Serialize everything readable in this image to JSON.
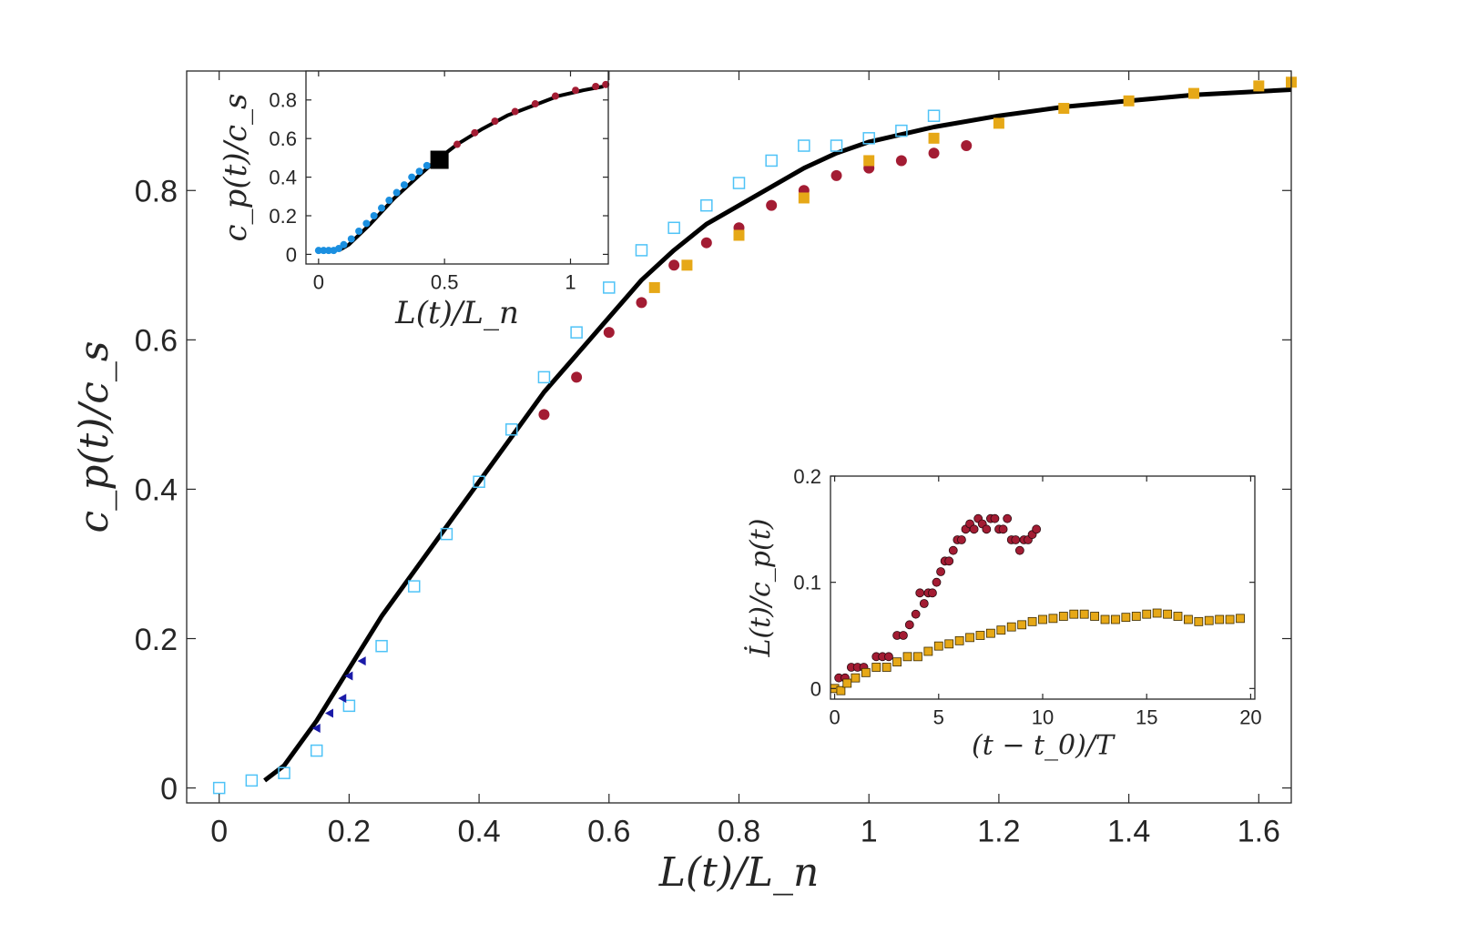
{
  "chart_data": [
    {
      "id": "main",
      "type": "scatter",
      "xlabel": "L(t)/L_n",
      "ylabel": "c_p(t)/c_s",
      "xlim": [
        -0.05,
        1.65
      ],
      "ylim": [
        -0.02,
        0.96
      ],
      "xticks": [
        0,
        0.2,
        0.4,
        0.6,
        0.8,
        1,
        1.2,
        1.4,
        1.6
      ],
      "xtick_labels": [
        "0",
        "0.2",
        "0.4",
        "0.6",
        "0.8",
        "1",
        "1.2",
        "1.4",
        "1.6"
      ],
      "yticks": [
        0,
        0.2,
        0.4,
        0.6,
        0.8
      ],
      "ytick_labels": [
        "0",
        "0.2",
        "0.4",
        "0.6",
        "0.8"
      ],
      "grid": false,
      "series": [
        {
          "name": "model",
          "kind": "line",
          "color": "#000000",
          "x": [
            0.07,
            0.1,
            0.15,
            0.2,
            0.25,
            0.3,
            0.35,
            0.4,
            0.45,
            0.5,
            0.55,
            0.6,
            0.65,
            0.7,
            0.75,
            0.8,
            0.85,
            0.9,
            0.95,
            1.0,
            1.1,
            1.2,
            1.3,
            1.4,
            1.5,
            1.65
          ],
          "y": [
            0.01,
            0.03,
            0.09,
            0.16,
            0.23,
            0.29,
            0.35,
            0.41,
            0.47,
            0.53,
            0.58,
            0.63,
            0.68,
            0.72,
            0.755,
            0.78,
            0.805,
            0.83,
            0.85,
            0.865,
            0.885,
            0.9,
            0.912,
            0.92,
            0.928,
            0.935
          ]
        },
        {
          "name": "light-blue",
          "kind": "scatter",
          "color": "#4fc3f7",
          "x": [
            0.0,
            0.05,
            0.1,
            0.15,
            0.2,
            0.25,
            0.3,
            0.35,
            0.4,
            0.45,
            0.5,
            0.55,
            0.6,
            0.65,
            0.7,
            0.75,
            0.8,
            0.85,
            0.9,
            0.95,
            1.0,
            1.05,
            1.1
          ],
          "y": [
            0.0,
            0.01,
            0.02,
            0.05,
            0.11,
            0.19,
            0.27,
            0.34,
            0.41,
            0.48,
            0.55,
            0.61,
            0.67,
            0.72,
            0.75,
            0.78,
            0.81,
            0.84,
            0.86,
            0.86,
            0.87,
            0.88,
            0.9
          ]
        },
        {
          "name": "dark-blue",
          "kind": "scatter",
          "color": "#1a1aa8",
          "x": [
            0.15,
            0.17,
            0.19,
            0.2,
            0.22
          ],
          "y": [
            0.08,
            0.1,
            0.12,
            0.15,
            0.17
          ]
        },
        {
          "name": "crimson",
          "kind": "scatter",
          "color": "#a31c33",
          "x": [
            0.5,
            0.55,
            0.6,
            0.65,
            0.7,
            0.75,
            0.8,
            0.85,
            0.9,
            0.95,
            1.0,
            1.05,
            1.1,
            1.15
          ],
          "y": [
            0.5,
            0.55,
            0.61,
            0.65,
            0.7,
            0.73,
            0.75,
            0.78,
            0.8,
            0.82,
            0.83,
            0.84,
            0.85,
            0.86
          ]
        },
        {
          "name": "gold",
          "kind": "scatter",
          "color": "#e6a817",
          "x": [
            0.67,
            0.72,
            0.8,
            0.9,
            1.0,
            1.1,
            1.2,
            1.3,
            1.4,
            1.5,
            1.6,
            1.65
          ],
          "y": [
            0.67,
            0.7,
            0.74,
            0.79,
            0.84,
            0.87,
            0.89,
            0.91,
            0.92,
            0.93,
            0.94,
            0.945
          ]
        }
      ]
    },
    {
      "id": "inset-top",
      "type": "scatter",
      "xlabel": "L(t)/L_n",
      "ylabel": "c_p(t)/c_s",
      "xlim": [
        -0.05,
        1.15
      ],
      "ylim": [
        -0.05,
        0.95
      ],
      "xticks": [
        0,
        0.5,
        1
      ],
      "xtick_labels": [
        "0",
        "0.5",
        "1"
      ],
      "yticks": [
        0,
        0.2,
        0.4,
        0.6,
        0.8
      ],
      "ytick_labels": [
        "0",
        "0.2",
        "0.4",
        "0.6",
        "0.8"
      ],
      "series": [
        {
          "name": "model",
          "kind": "line",
          "color": "#000000",
          "x": [
            0.08,
            0.12,
            0.16,
            0.2,
            0.25,
            0.3,
            0.35,
            0.4,
            0.47,
            0.55,
            0.65,
            0.75,
            0.85,
            0.95,
            1.05,
            1.13
          ],
          "y": [
            0.02,
            0.05,
            0.1,
            0.15,
            0.22,
            0.29,
            0.35,
            0.41,
            0.49,
            0.57,
            0.65,
            0.72,
            0.77,
            0.82,
            0.85,
            0.87
          ]
        },
        {
          "name": "blue",
          "kind": "scatter",
          "color": "#1a8fe0",
          "x": [
            0.0,
            0.02,
            0.04,
            0.06,
            0.08,
            0.1,
            0.13,
            0.16,
            0.19,
            0.22,
            0.25,
            0.28,
            0.31,
            0.34,
            0.37,
            0.4,
            0.43
          ],
          "y": [
            0.02,
            0.02,
            0.02,
            0.02,
            0.03,
            0.05,
            0.08,
            0.12,
            0.16,
            0.2,
            0.24,
            0.28,
            0.32,
            0.36,
            0.4,
            0.43,
            0.46
          ]
        },
        {
          "name": "crimson",
          "kind": "scatter",
          "color": "#a31c33",
          "x": [
            0.48,
            0.55,
            0.62,
            0.7,
            0.78,
            0.86,
            0.94,
            1.02,
            1.1,
            1.14
          ],
          "y": [
            0.5,
            0.57,
            0.63,
            0.69,
            0.74,
            0.78,
            0.82,
            0.85,
            0.87,
            0.88
          ]
        },
        {
          "name": "marker",
          "kind": "square",
          "color": "#000000",
          "x": [
            0.48
          ],
          "y": [
            0.49
          ]
        }
      ]
    },
    {
      "id": "inset-bottom",
      "type": "scatter",
      "xlabel": "(t − t_0)/T",
      "ylabel": "L̇(t)/c_p(t)",
      "xlim": [
        -0.2,
        20.2
      ],
      "ylim": [
        -0.01,
        0.2
      ],
      "xticks": [
        0,
        5,
        10,
        15,
        20
      ],
      "xtick_labels": [
        "0",
        "5",
        "10",
        "15",
        "20"
      ],
      "yticks": [
        0,
        0.1,
        0.2
      ],
      "ytick_labels": [
        "0",
        "0.1",
        "0.2"
      ],
      "series": [
        {
          "name": "crimson",
          "kind": "scatter",
          "color": "#a31c33",
          "x": [
            0.2,
            0.5,
            0.8,
            1.1,
            1.4,
            2.0,
            2.3,
            2.6,
            3.0,
            3.3,
            3.6,
            3.9,
            4.1,
            4.3,
            4.5,
            4.7,
            4.9,
            5.1,
            5.3,
            5.5,
            5.7,
            5.9,
            6.1,
            6.3,
            6.5,
            6.7,
            6.9,
            7.1,
            7.3,
            7.5,
            7.7,
            7.9,
            8.1,
            8.3,
            8.5,
            8.7,
            8.9,
            9.1,
            9.3,
            9.5,
            9.7
          ],
          "y": [
            0.01,
            0.01,
            0.02,
            0.02,
            0.02,
            0.03,
            0.03,
            0.03,
            0.05,
            0.05,
            0.06,
            0.07,
            0.09,
            0.08,
            0.09,
            0.09,
            0.1,
            0.11,
            0.12,
            0.12,
            0.13,
            0.14,
            0.14,
            0.15,
            0.155,
            0.15,
            0.16,
            0.155,
            0.15,
            0.16,
            0.16,
            0.15,
            0.15,
            0.16,
            0.14,
            0.14,
            0.13,
            0.14,
            0.14,
            0.145,
            0.15
          ]
        },
        {
          "name": "gold",
          "kind": "scatter",
          "color": "#e6a817",
          "x": [
            0.0,
            0.3,
            0.6,
            1.0,
            1.5,
            2.0,
            2.5,
            3.0,
            3.5,
            4.0,
            4.5,
            5.0,
            5.5,
            6.0,
            6.5,
            7.0,
            7.5,
            8.0,
            8.5,
            9.0,
            9.5,
            10.0,
            10.5,
            11.0,
            11.5,
            12.0,
            12.5,
            13.0,
            13.5,
            14.0,
            14.5,
            15.0,
            15.5,
            16.0,
            16.5,
            17.0,
            17.5,
            18.0,
            18.5,
            19.0,
            19.5
          ],
          "y": [
            0.0,
            -0.002,
            0.005,
            0.01,
            0.015,
            0.02,
            0.02,
            0.025,
            0.03,
            0.03,
            0.035,
            0.04,
            0.042,
            0.045,
            0.048,
            0.05,
            0.052,
            0.055,
            0.058,
            0.06,
            0.063,
            0.065,
            0.066,
            0.068,
            0.07,
            0.07,
            0.068,
            0.065,
            0.065,
            0.067,
            0.068,
            0.07,
            0.071,
            0.07,
            0.068,
            0.065,
            0.063,
            0.064,
            0.065,
            0.065,
            0.066
          ]
        }
      ]
    }
  ]
}
